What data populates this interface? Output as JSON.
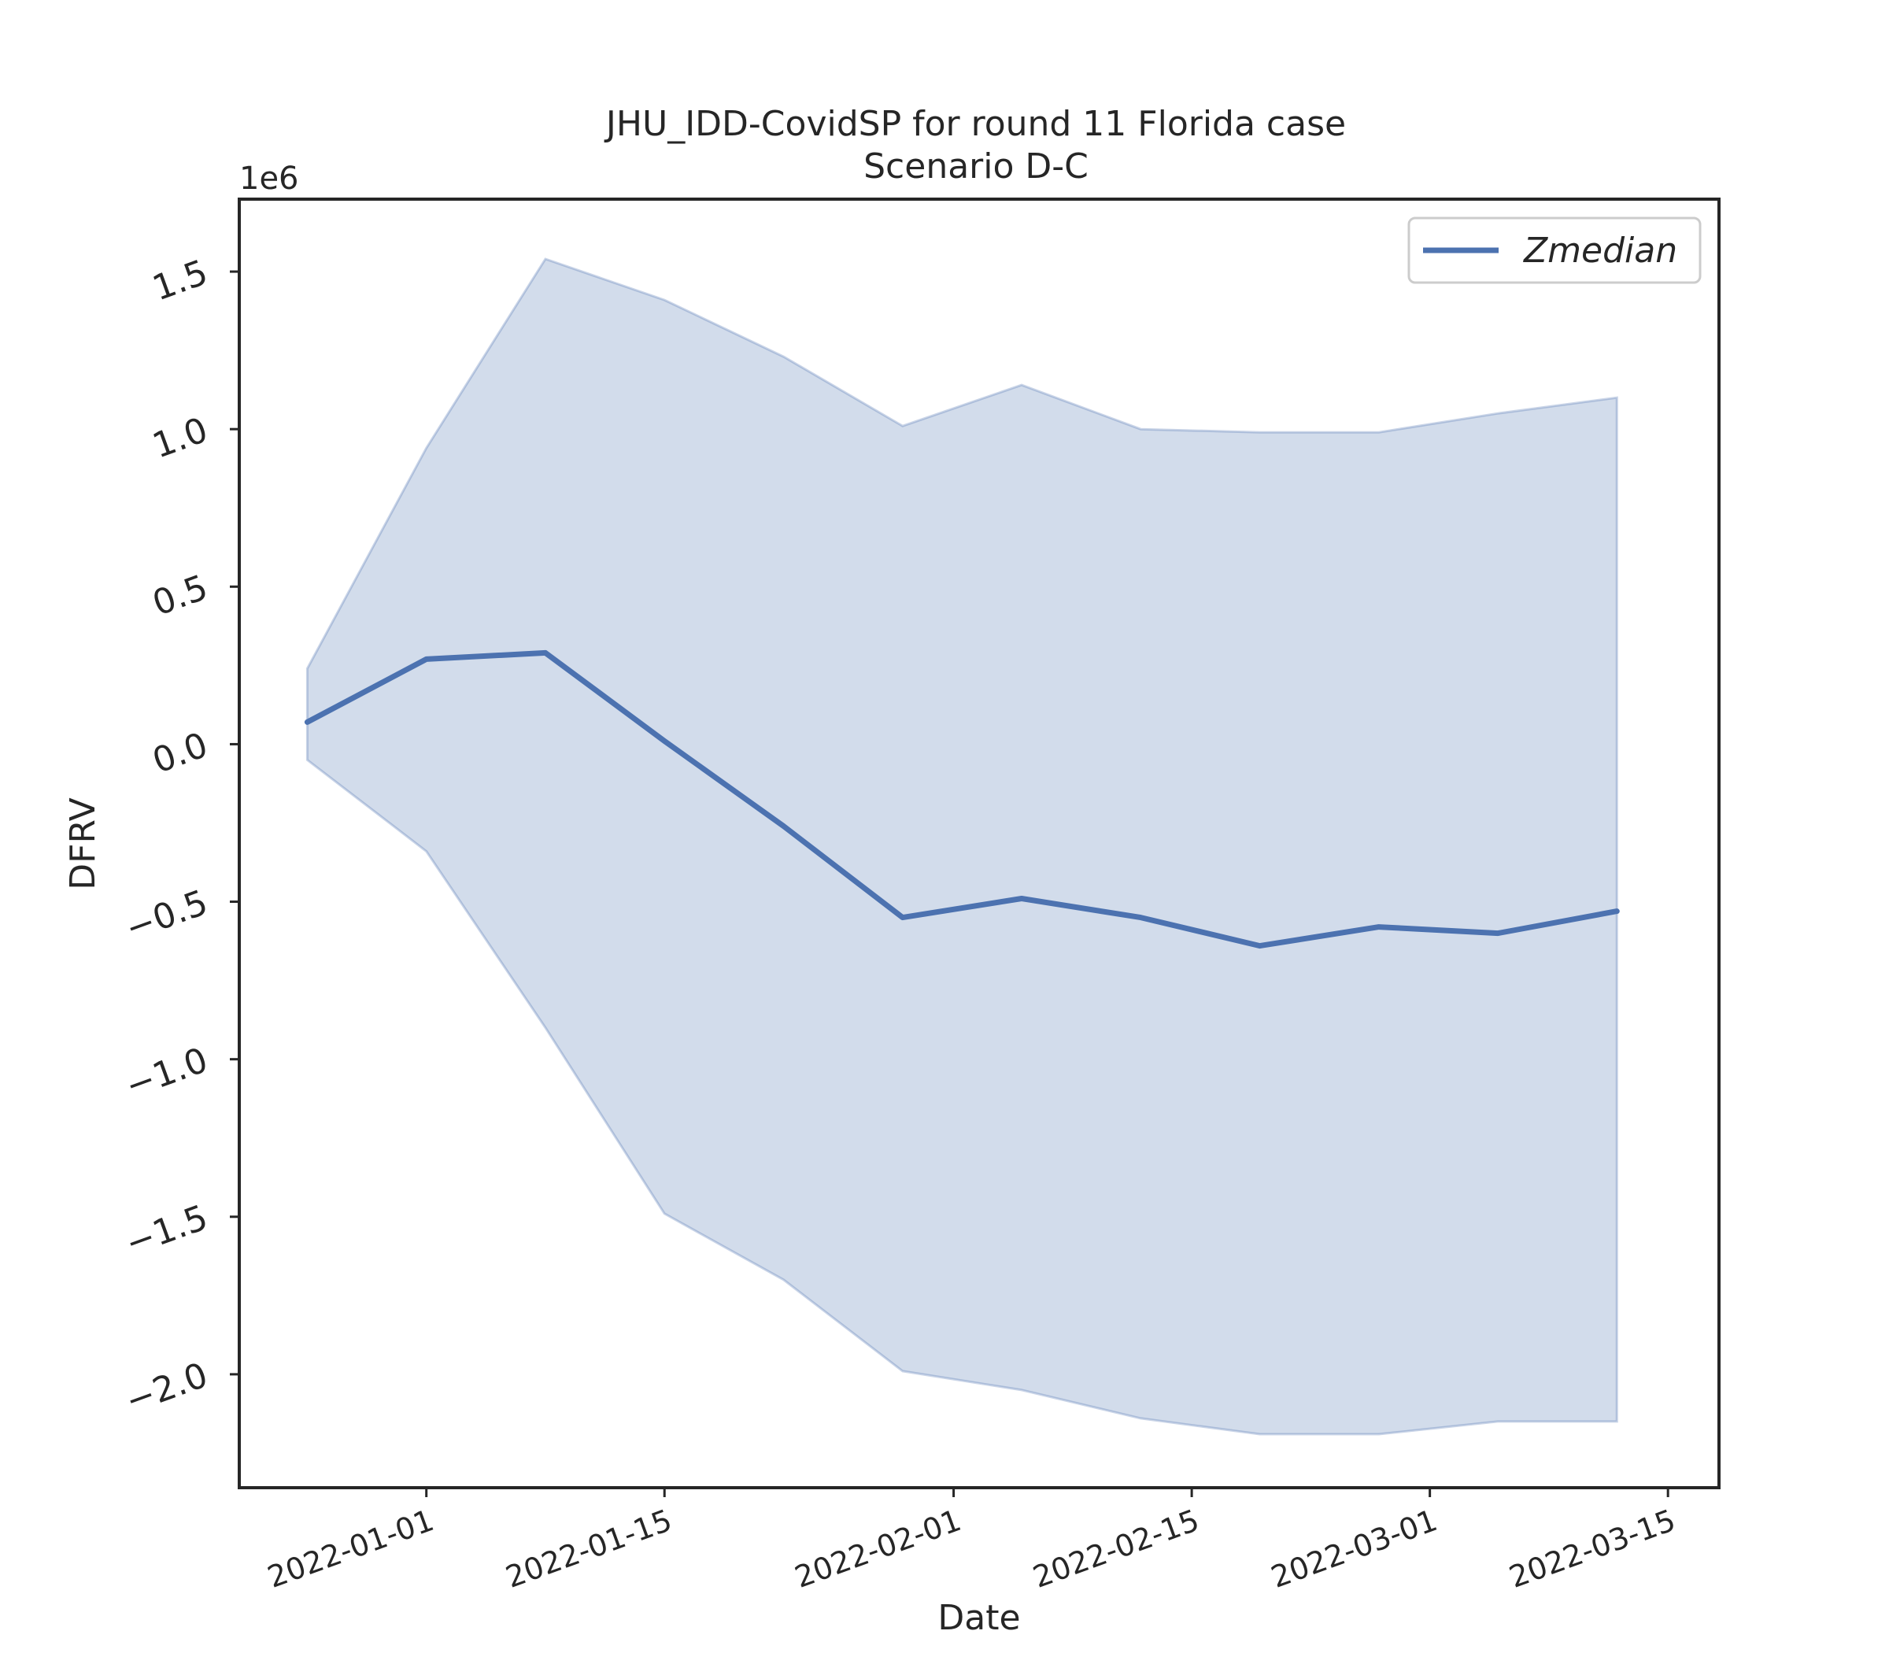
{
  "chart_data": {
    "type": "area",
    "title": "JHU_IDD-CovidSP for round 11 Florida case",
    "subtitle": "Scenario D-C",
    "xlabel": "Date",
    "ylabel": "DFRV",
    "y_offset_text": "1e6",
    "y_multiplier": 1000000,
    "xlim": [
      "2021-12-21",
      "2022-03-18"
    ],
    "ylim": [
      -2.36,
      1.73
    ],
    "x_ticks": [
      "2022-01-01",
      "2022-01-15",
      "2022-02-01",
      "2022-02-15",
      "2022-03-01",
      "2022-03-15"
    ],
    "y_ticks": [
      1.5,
      1.0,
      0.5,
      0.0,
      -0.5,
      -1.0,
      -1.5,
      -2.0
    ],
    "y_tick_labels": [
      "1.5",
      "1.0",
      "0.5",
      "0.0",
      "−0.5",
      "−1.0",
      "−1.5",
      "−2.0"
    ],
    "grid": false,
    "legend": {
      "position": "top-right",
      "entries": [
        "Zmedian"
      ]
    },
    "colors": {
      "line": "#4c72b0",
      "band": "#4c72b0",
      "axis": "#262626"
    },
    "x": [
      "2021-12-25",
      "2022-01-01",
      "2022-01-08",
      "2022-01-15",
      "2022-01-22",
      "2022-01-29",
      "2022-02-05",
      "2022-02-12",
      "2022-02-19",
      "2022-02-26",
      "2022-03-05",
      "2022-03-12"
    ],
    "series": [
      {
        "name": "Zmedian",
        "values": [
          0.07,
          0.27,
          0.29,
          0.01,
          -0.26,
          -0.55,
          -0.49,
          -0.55,
          -0.64,
          -0.58,
          -0.6,
          -0.53
        ]
      }
    ],
    "band": {
      "upper": [
        0.24,
        0.94,
        1.54,
        1.41,
        1.23,
        1.01,
        1.14,
        1.0,
        0.99,
        0.99,
        1.05,
        1.1
      ],
      "lower": [
        -0.05,
        -0.34,
        -0.9,
        -1.49,
        -1.7,
        -1.99,
        -2.05,
        -2.14,
        -2.19,
        -2.19,
        -2.15,
        -2.15
      ]
    }
  }
}
